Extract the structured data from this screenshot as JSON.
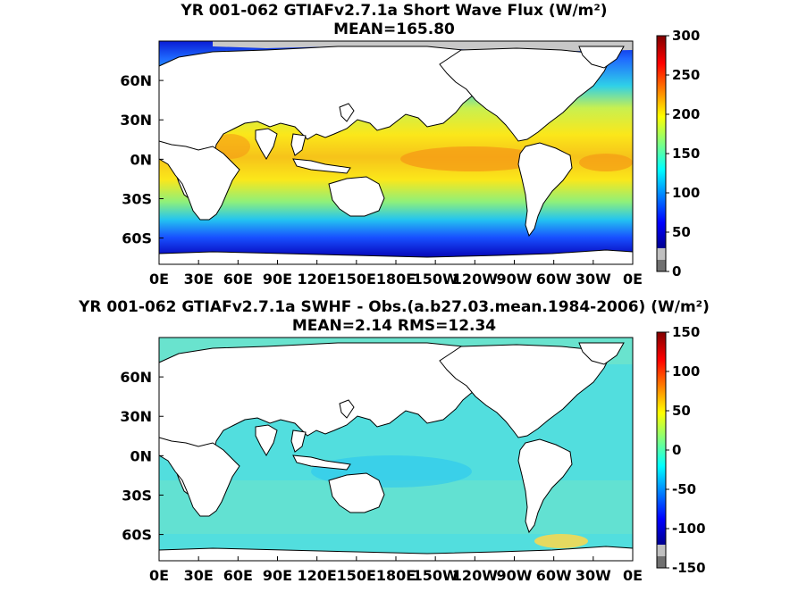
{
  "chart_data": [
    {
      "type": "heatmap",
      "title": "YR 001-062 GTIAFv2.7.1a  Short Wave Flux (W/m²)",
      "subtitle": "MEAN=165.80",
      "x_tick_labels": [
        "0E",
        "30E",
        "60E",
        "90E",
        "120E",
        "150E",
        "180E",
        "150W",
        "120W",
        "90W",
        "60W",
        "30W",
        "0E"
      ],
      "x_ticks_deg": [
        0,
        30,
        60,
        90,
        120,
        150,
        180,
        210,
        240,
        270,
        300,
        330,
        360
      ],
      "y_tick_labels": [
        "60N",
        "30N",
        "0N",
        "30S",
        "60S"
      ],
      "y_ticks_deg": [
        60,
        30,
        0,
        -30,
        -60
      ],
      "xlim": [
        0,
        360
      ],
      "ylim": [
        -80,
        90
      ],
      "colorbar": {
        "ticks": [
          0,
          50,
          100,
          150,
          200,
          250,
          300
        ],
        "labels": [
          "0",
          "50",
          "100",
          "150",
          "200",
          "250",
          "300"
        ],
        "range": [
          0,
          300
        ]
      },
      "mean": 165.8
    },
    {
      "type": "heatmap",
      "title": "YR 001-062 GTIAFv2.7.1a SWHF - Obs.(a.b27.03.mean.1984-2006) (W/m²)",
      "subtitle": "MEAN=2.14 RMS=12.34",
      "x_tick_labels": [
        "0E",
        "30E",
        "60E",
        "90E",
        "120E",
        "150E",
        "180E",
        "150W",
        "120W",
        "90W",
        "60W",
        "30W",
        "0E"
      ],
      "x_ticks_deg": [
        0,
        30,
        60,
        90,
        120,
        150,
        180,
        210,
        240,
        270,
        300,
        330,
        360
      ],
      "y_tick_labels": [
        "60N",
        "30N",
        "0N",
        "30S",
        "60S"
      ],
      "y_ticks_deg": [
        60,
        30,
        0,
        -30,
        -60
      ],
      "xlim": [
        0,
        360
      ],
      "ylim": [
        -80,
        90
      ],
      "colorbar": {
        "ticks": [
          -150,
          -100,
          -50,
          0,
          50,
          100,
          150
        ],
        "labels": [
          "-150",
          "-100",
          "-50",
          "0",
          "50",
          "100",
          "150"
        ],
        "range": [
          -150,
          150
        ]
      },
      "mean": 2.14,
      "rms": 12.34
    }
  ]
}
